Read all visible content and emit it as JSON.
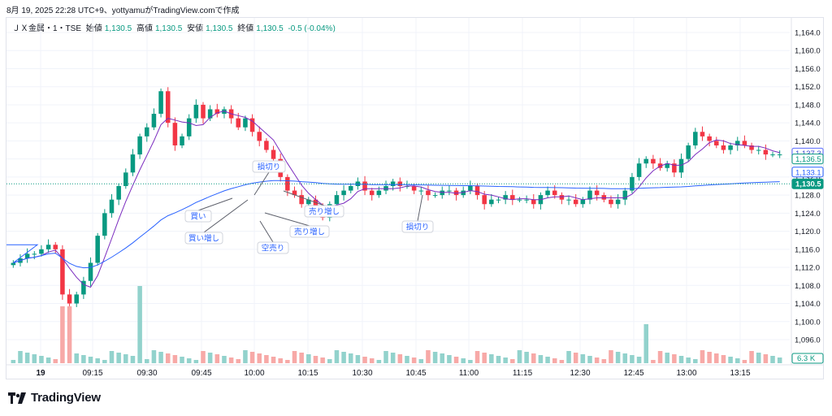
{
  "header": {
    "published": "8月 19, 2025 22:28 UTC+9、yottyamuがTradingView.comで作成"
  },
  "symbol": {
    "name": "ＪＸ金属・1・TSE",
    "open_label": "始値",
    "open": "1,130.5",
    "high_label": "高値",
    "high": "1,130.5",
    "low_label": "安値",
    "low": "1,130.5",
    "close_label": "終値",
    "close": "1,130.5",
    "change": "-0.5 (-0.04%)"
  },
  "price_axis": {
    "ticks": [
      "1,164.0",
      "1,160.0",
      "1,156.0",
      "1,152.0",
      "1,148.0",
      "1,144.0",
      "1,140.0",
      "1,136.0",
      "1,132.0",
      "1,128.0",
      "1,124.0",
      "1,120.0",
      "1,116.0",
      "1,112.0",
      "1,108.0",
      "1,104.0",
      "1,100.0",
      "1,096.0"
    ],
    "badges": [
      {
        "text": "1,137.3",
        "style": "ma"
      },
      {
        "text": "1,136.5",
        "style": "green-outline"
      },
      {
        "text": "1,133.1",
        "style": "vwap"
      },
      {
        "text": "1,130.5",
        "style": "last"
      }
    ],
    "volume_badge": "6.3 K",
    "volume_tick": "0"
  },
  "time_axis": {
    "ticks": [
      "19",
      "09:15",
      "09:30",
      "09:45",
      "10:00",
      "10:15",
      "10:30",
      "10:45",
      "11:00",
      "11:15",
      "12:30",
      "12:45",
      "13:00",
      "13:15"
    ]
  },
  "annotations": [
    "損切り",
    "買い",
    "買い増し",
    "空売り",
    "売り増し",
    "売り増し",
    "損切り"
  ],
  "colors": {
    "up": "#089981",
    "down": "#f23645",
    "ma": "#7b2cbf",
    "vwap": "#2962ff",
    "up_vol": "#92d2cc",
    "down_vol": "#f7a9a7"
  },
  "brand": {
    "name": "TradingView"
  },
  "chart_data": {
    "type": "candlestick",
    "interval": "1",
    "ylim": [
      1092,
      1166
    ],
    "last_price": 1130.5,
    "series": [
      {
        "name": "price",
        "values": [
          1113,
          1114,
          1115,
          1115,
          1116,
          1117,
          1116,
          1106,
          1104,
          1106,
          1109,
          1113,
          1119,
          1124,
          1127,
          1130,
          1133,
          1137,
          1141,
          1143,
          1146,
          1151,
          1144,
          1139,
          1141,
          1145,
          1148,
          1145,
          1147,
          1146,
          1147,
          1145,
          1143,
          1145,
          1142,
          1140,
          1138,
          1136,
          1132,
          1129,
          1128,
          1126,
          1127,
          1125,
          1123,
          1126,
          1128,
          1129,
          1130,
          1131,
          1129,
          1128,
          1129,
          1130,
          1131,
          1130,
          1130,
          1129,
          1129,
          1128,
          1128,
          1129,
          1129,
          1128,
          1129,
          1130,
          1128,
          1126,
          1127,
          1127,
          1128,
          1127,
          1127,
          1127,
          1126,
          1128,
          1129,
          1128,
          1127,
          1127,
          1126,
          1127,
          1129,
          1128,
          1127,
          1126,
          1127,
          1129,
          1132,
          1135,
          1136,
          1135,
          1134,
          1135,
          1133,
          1136,
          1139,
          1142,
          1141,
          1140,
          1139,
          1138,
          1139,
          1140,
          1139,
          1138,
          1138,
          1137,
          1137,
          1137
        ]
      }
    ]
  }
}
